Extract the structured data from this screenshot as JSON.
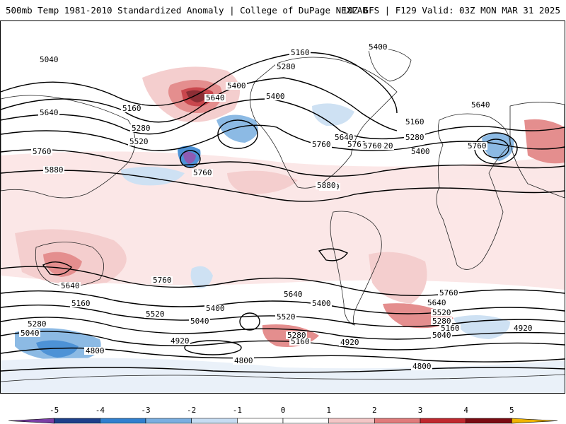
{
  "header": {
    "title": "500mb Temp 1981-2010 Standardized Anomaly | College of DuPage NEXLAB",
    "run_info": "18Z GFS | F129 Valid: 03Z MON MAR 31 2025"
  },
  "map": {
    "contour_labels": [
      "5040",
      "5160",
      "5280",
      "5400",
      "5400",
      "5640",
      "5640",
      "5160",
      "5280",
      "5520",
      "5760",
      "5760",
      "5880",
      "5400",
      "5160",
      "5280",
      "5400",
      "5520",
      "5640",
      "5760",
      "5880",
      "5640",
      "5760",
      "5760",
      "5760",
      "5880",
      "5760",
      "5640",
      "5640",
      "5400",
      "5520",
      "5160",
      "5520",
      "5400",
      "5280",
      "5040",
      "5040",
      "5280",
      "5160",
      "4920",
      "4920",
      "4800",
      "4800",
      "5640",
      "5520",
      "5280",
      "5160",
      "5040",
      "4920",
      "4800",
      "5760"
    ]
  },
  "colorbar": {
    "tick_labels": [
      "-5",
      "-4",
      "-3",
      "-2",
      "-1",
      "0",
      "1",
      "2",
      "3",
      "4",
      "5"
    ],
    "colors": [
      "#7b3fa6",
      "#1c3f8a",
      "#2f7fcf",
      "#79aee0",
      "#c6dcf2",
      "#ffffff",
      "#ffffff",
      "#f3c6c6",
      "#e07b7b",
      "#c0282e",
      "#7a0a12",
      "#f0b400"
    ]
  }
}
